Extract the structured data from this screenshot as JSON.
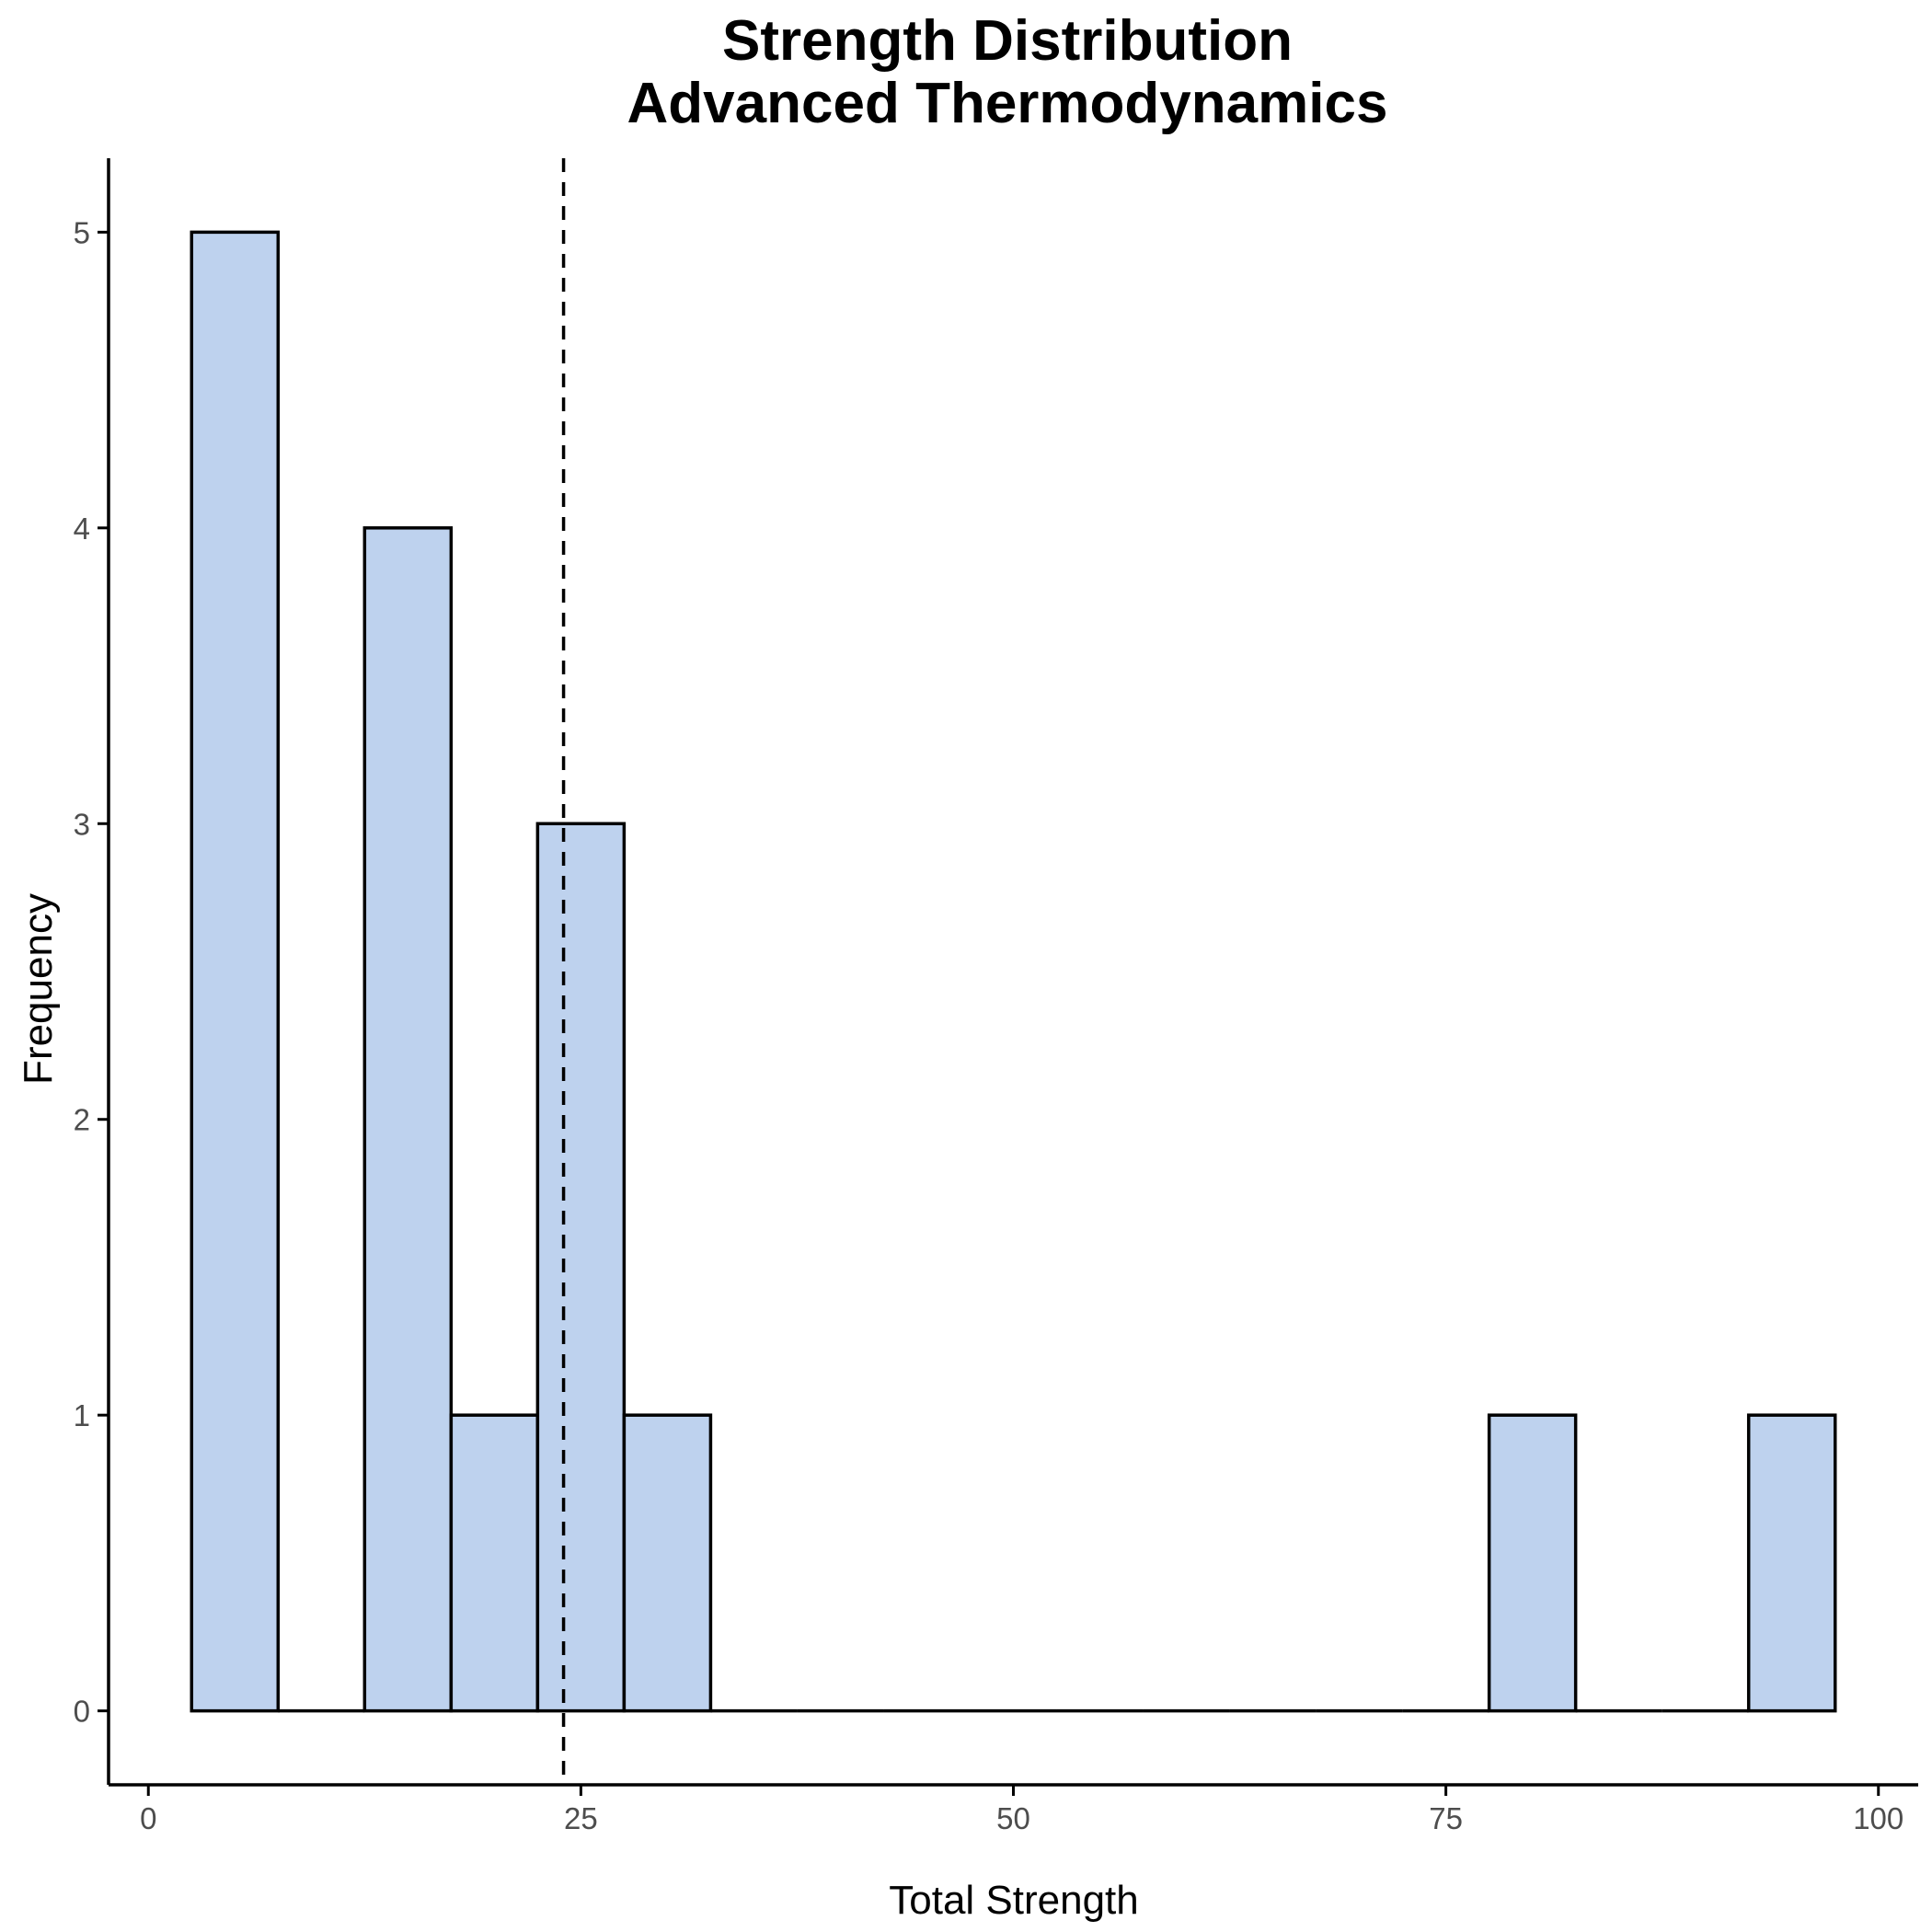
{
  "chart_data": {
    "type": "bar",
    "subtype": "histogram",
    "title_line1": "Strength Distribution",
    "title_line2": "Advanced Thermodynamics",
    "xlabel": "Total Strength",
    "ylabel": "Frequency",
    "bin_width": 5,
    "bins": [
      {
        "start": 2.5,
        "end": 7.5,
        "count": 5
      },
      {
        "start": 7.5,
        "end": 12.5,
        "count": 0
      },
      {
        "start": 12.5,
        "end": 17.5,
        "count": 4
      },
      {
        "start": 17.5,
        "end": 22.5,
        "count": 1
      },
      {
        "start": 22.5,
        "end": 27.5,
        "count": 3
      },
      {
        "start": 27.5,
        "end": 32.5,
        "count": 1
      },
      {
        "start": 32.5,
        "end": 37.5,
        "count": 0
      },
      {
        "start": 37.5,
        "end": 42.5,
        "count": 0
      },
      {
        "start": 42.5,
        "end": 47.5,
        "count": 0
      },
      {
        "start": 47.5,
        "end": 52.5,
        "count": 0
      },
      {
        "start": 52.5,
        "end": 57.5,
        "count": 0
      },
      {
        "start": 57.5,
        "end": 62.5,
        "count": 0
      },
      {
        "start": 62.5,
        "end": 67.5,
        "count": 0
      },
      {
        "start": 67.5,
        "end": 72.5,
        "count": 0
      },
      {
        "start": 72.5,
        "end": 77.5,
        "count": 0
      },
      {
        "start": 77.5,
        "end": 82.5,
        "count": 1
      },
      {
        "start": 82.5,
        "end": 87.5,
        "count": 0
      },
      {
        "start": 87.5,
        "end": 92.5,
        "count": 0
      },
      {
        "start": 92.5,
        "end": 97.5,
        "count": 1
      }
    ],
    "mean_line": 24,
    "xlim": [
      -2.3,
      102.3
    ],
    "ylim": [
      -0.25,
      5.25
    ],
    "x_ticks": [
      0,
      25,
      50,
      75,
      100
    ],
    "y_ticks": [
      0,
      1,
      2,
      3,
      4,
      5
    ],
    "grid": false,
    "colors": {
      "bar_fill": "#bed2ee",
      "bar_outline": "#000000",
      "mean_line": "#000000"
    }
  }
}
